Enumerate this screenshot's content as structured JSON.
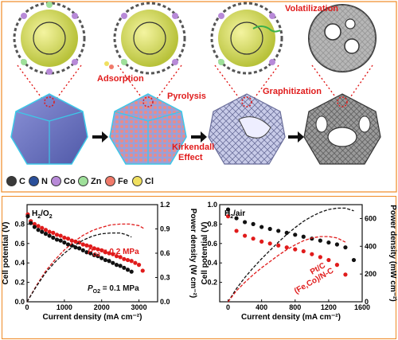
{
  "top": {
    "labels": {
      "adsorption": "Adsorption",
      "pyrolysis": "Pyrolysis",
      "volatilization": "Volatilization",
      "graphitization": "Graphitization",
      "kirkendall_1": "Kirkendall",
      "kirkendall_2": "Effect"
    },
    "legend": [
      {
        "label": "C",
        "color": "#3a3a3a"
      },
      {
        "label": "N",
        "color": "#2a4f9a"
      },
      {
        "label": "Co",
        "color": "#b88ad8"
      },
      {
        "label": "Zn",
        "color": "#9fe09a"
      },
      {
        "label": "Fe",
        "color": "#f07a6a"
      },
      {
        "label": "Cl",
        "color": "#f0e060"
      }
    ]
  },
  "chart_data": [
    {
      "type": "line",
      "inset_label": "H",
      "inset_label_sub": "2",
      "inset_label_end": "/O",
      "inset_label_sub2": "2",
      "xlabel": "Current density (mA cm⁻²)",
      "ylabel": "Cell potential (V)",
      "y2label": "Power density (W cm⁻²)",
      "xlim": [
        0,
        3500
      ],
      "ylim": [
        0,
        1.0
      ],
      "y2lim": [
        0,
        1.2
      ],
      "x_ticks": [
        0,
        1000,
        2000,
        3000
      ],
      "y_ticks": [
        0,
        0.2,
        0.4,
        0.6,
        0.8
      ],
      "y2_ticks": [
        0,
        0.3,
        0.6,
        0.9,
        1.2
      ],
      "annotations": [
        {
          "text": "P",
          "sub": "O2",
          "rest": " = 0.2 MPa",
          "color": "#e01b1b"
        },
        {
          "text": "P",
          "sub": "O2",
          "rest": " = 0.1 MPa",
          "color": "#111111"
        }
      ],
      "series": [
        {
          "color": "#e01b1b",
          "style": "dots",
          "axis": "left",
          "x": [
            20,
            100,
            200,
            300,
            400,
            500,
            600,
            700,
            800,
            900,
            1000,
            1100,
            1200,
            1300,
            1400,
            1500,
            1600,
            1700,
            1800,
            1900,
            2000,
            2100,
            2200,
            2300,
            2400,
            2500,
            2600,
            2700,
            2800,
            2900,
            3000,
            3100
          ],
          "y": [
            0.9,
            0.83,
            0.8,
            0.78,
            0.76,
            0.74,
            0.72,
            0.71,
            0.69,
            0.68,
            0.66,
            0.65,
            0.63,
            0.62,
            0.61,
            0.59,
            0.58,
            0.57,
            0.55,
            0.54,
            0.53,
            0.51,
            0.5,
            0.49,
            0.47,
            0.46,
            0.44,
            0.43,
            0.42,
            0.4,
            0.38,
            0.32
          ]
        },
        {
          "color": "#111111",
          "style": "dots",
          "axis": "left",
          "x": [
            20,
            100,
            200,
            300,
            400,
            500,
            600,
            700,
            800,
            900,
            1000,
            1100,
            1200,
            1300,
            1400,
            1500,
            1600,
            1700,
            1800,
            1900,
            2000,
            2100,
            2200,
            2300,
            2400,
            2500,
            2600,
            2700,
            2800
          ],
          "y": [
            0.88,
            0.81,
            0.77,
            0.74,
            0.72,
            0.7,
            0.68,
            0.66,
            0.64,
            0.63,
            0.61,
            0.59,
            0.58,
            0.56,
            0.55,
            0.53,
            0.51,
            0.5,
            0.48,
            0.47,
            0.45,
            0.43,
            0.42,
            0.4,
            0.38,
            0.37,
            0.35,
            0.33,
            0.31
          ]
        },
        {
          "color": "#e01b1b",
          "style": "dashed",
          "axis": "right",
          "x": [
            0,
            250,
            500,
            750,
            1000,
            1250,
            1500,
            1750,
            2000,
            2250,
            2500,
            2750,
            3000,
            3150
          ],
          "y": [
            0,
            0.2,
            0.38,
            0.52,
            0.64,
            0.74,
            0.82,
            0.88,
            0.92,
            0.95,
            0.96,
            0.96,
            0.94,
            0.9
          ]
        },
        {
          "color": "#111111",
          "style": "dashed",
          "axis": "right",
          "x": [
            0,
            250,
            500,
            750,
            1000,
            1250,
            1500,
            1750,
            2000,
            2250,
            2500,
            2650,
            2800
          ],
          "y": [
            0,
            0.19,
            0.36,
            0.49,
            0.6,
            0.69,
            0.76,
            0.81,
            0.84,
            0.85,
            0.85,
            0.83,
            0.8
          ]
        }
      ]
    },
    {
      "type": "line",
      "inset_label": "H",
      "inset_label_sub": "2",
      "inset_label_end": "/air",
      "xlabel": "Current density (mA cm⁻²)",
      "ylabel": "Cell potential (V)",
      "y2label": "Power density (mW cm⁻²)",
      "xlim": [
        -100,
        1600
      ],
      "ylim": [
        0,
        1.0
      ],
      "y2lim": [
        0,
        700
      ],
      "x_ticks": [
        0,
        400,
        800,
        1200,
        1600
      ],
      "y_ticks": [
        0.2,
        0.4,
        0.6,
        0.8,
        1.0
      ],
      "y2_ticks": [
        0,
        200,
        400,
        600
      ],
      "annotations": [
        {
          "text": "Pt/C",
          "color": "#e01b1b"
        },
        {
          "text": "(Fe,Co)/N-C",
          "color": "#e01b1b"
        }
      ],
      "series": [
        {
          "color": "#111111",
          "style": "dots",
          "axis": "left",
          "x": [
            0,
            100,
            200,
            300,
            400,
            500,
            600,
            700,
            800,
            900,
            1000,
            1100,
            1200,
            1300,
            1400,
            1500
          ],
          "y": [
            0.95,
            0.86,
            0.82,
            0.8,
            0.77,
            0.75,
            0.73,
            0.71,
            0.69,
            0.67,
            0.65,
            0.63,
            0.61,
            0.59,
            0.56,
            0.43
          ]
        },
        {
          "color": "#e01b1b",
          "style": "dots",
          "axis": "left",
          "x": [
            0,
            100,
            200,
            300,
            400,
            500,
            600,
            700,
            800,
            900,
            1000,
            1100,
            1200,
            1300,
            1400
          ],
          "y": [
            0.88,
            0.73,
            0.68,
            0.65,
            0.62,
            0.6,
            0.58,
            0.56,
            0.54,
            0.52,
            0.49,
            0.46,
            0.43,
            0.38,
            0.28
          ]
        },
        {
          "color": "#111111",
          "style": "dashed",
          "axis": "right",
          "x": [
            0,
            100,
            200,
            300,
            400,
            500,
            600,
            700,
            800,
            900,
            1000,
            1100,
            1200,
            1300,
            1400,
            1500
          ],
          "y": [
            0,
            95,
            175,
            245,
            310,
            370,
            430,
            485,
            535,
            580,
            615,
            645,
            665,
            675,
            675,
            655
          ]
        },
        {
          "color": "#e01b1b",
          "style": "dashed",
          "axis": "right",
          "x": [
            0,
            100,
            200,
            300,
            400,
            500,
            600,
            700,
            800,
            900,
            1000,
            1100,
            1200,
            1300,
            1400
          ],
          "y": [
            0,
            80,
            140,
            195,
            245,
            290,
            335,
            375,
            410,
            440,
            460,
            470,
            470,
            460,
            430
          ]
        }
      ]
    }
  ]
}
